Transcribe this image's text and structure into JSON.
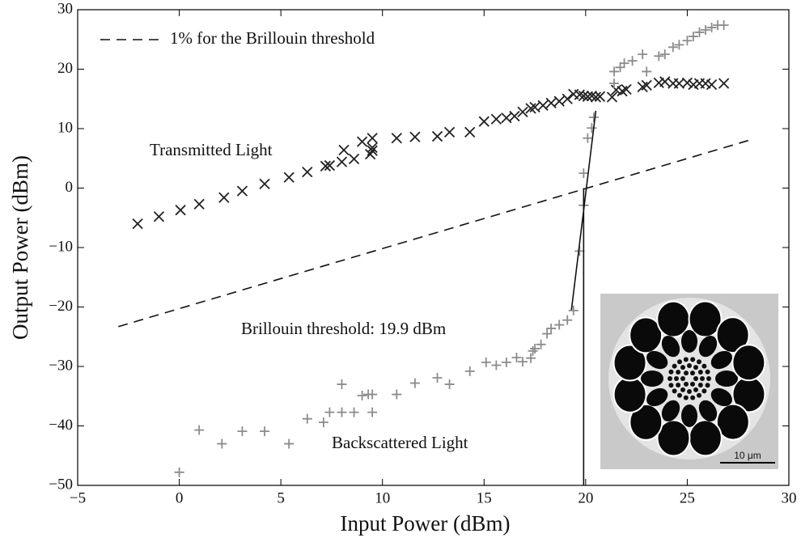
{
  "chart_data": {
    "type": "scatter",
    "xlabel": "Input Power (dBm)",
    "ylabel": "Output Power (dBm)",
    "xlim": [
      -5,
      30
    ],
    "ylim": [
      -50,
      30
    ],
    "xticks": [
      {
        "value": -5,
        "label": "−5"
      },
      0,
      5,
      10,
      15,
      20,
      25,
      30
    ],
    "yticks": [
      {
        "value": -50,
        "label": "−50"
      },
      {
        "value": -40,
        "label": "−40"
      },
      {
        "value": -30,
        "label": "−30"
      },
      {
        "value": -20,
        "label": "−20"
      },
      {
        "value": -10,
        "label": "−10"
      },
      0,
      10,
      20,
      30
    ],
    "legend": "upper left",
    "annotations": [
      "Transmitted Light",
      "Brillouin threshold: 19.9 dBm",
      "Backscattered Light"
    ],
    "inset": {
      "scale_label": "10 μm"
    },
    "series": [
      {
        "marker": "x",
        "color": "#222222",
        "x": [
          -2.05,
          -1,
          0.06,
          0.98,
          2.2,
          3.1,
          4.2,
          5.4,
          6.3,
          7.2,
          7.4,
          8,
          8.1,
          8.6,
          9,
          9.4,
          9.5,
          9.5,
          9.5,
          10.7,
          11.6,
          12.7,
          13.3,
          14.3,
          15,
          15.6,
          16.1,
          16.5,
          16.9,
          17.3,
          17.5,
          17.9,
          18.3,
          18.7,
          19.1,
          19.4,
          19.7,
          19.9,
          20.1,
          20.3,
          20.5,
          20.7,
          21.3,
          21.5,
          21.8,
          22,
          22.8,
          23,
          23.6,
          23.9,
          24.3,
          24.6,
          25,
          25.3,
          25.6,
          25.9,
          26.2,
          26.8
        ],
        "values": [
          -6,
          -4.8,
          -3.7,
          -2.7,
          -1.6,
          -0.5,
          0.7,
          1.8,
          2.7,
          3.7,
          3.8,
          4.4,
          6.4,
          4.9,
          7.8,
          5.7,
          8.4,
          6.8,
          6.3,
          8.4,
          8.6,
          8.7,
          9.4,
          9.4,
          11.2,
          11.6,
          11.8,
          12.1,
          12.8,
          13.4,
          13.6,
          13.9,
          14.3,
          14.6,
          15,
          15.8,
          15.7,
          15.5,
          15.4,
          15.5,
          15.3,
          15.4,
          15.3,
          16.5,
          16.3,
          16.6,
          17,
          17.3,
          17.7,
          17.9,
          17.6,
          17.6,
          17.7,
          17.4,
          17.6,
          17.6,
          17.4,
          17.6
        ]
      },
      {
        "marker": "+",
        "color": "#8c8c8c",
        "x": [
          0,
          0.98,
          2.1,
          3.1,
          4.2,
          5.4,
          6.3,
          7.1,
          7.4,
          8,
          8.6,
          8,
          9,
          9.3,
          9.5,
          9.5,
          10.7,
          11.6,
          12.7,
          13.3,
          14.3,
          15.1,
          15.6,
          16.1,
          16.6,
          16.9,
          17.3,
          17.4,
          17.5,
          17.8,
          18.1,
          18.3,
          18.7,
          19.1,
          19.4,
          19.7,
          19.9,
          19.9,
          20.1,
          20.3,
          20.4,
          21.4,
          21.4,
          21.7,
          21.9,
          22.3,
          22.8,
          23,
          23.6,
          23.9,
          24.3,
          24.6,
          25,
          25.3,
          25.6,
          25.9,
          26.2,
          26.5,
          26.8
        ],
        "values": [
          -47.8,
          -40.7,
          -43,
          -40.9,
          -40.9,
          -43,
          -38.8,
          -39.4,
          -37.7,
          -37.7,
          -37.7,
          -33,
          -34.9,
          -34.7,
          -37.7,
          -34.7,
          -34.7,
          -32.8,
          -31.9,
          -33,
          -30.8,
          -29.3,
          -29.8,
          -29.3,
          -28.5,
          -29.2,
          -28.6,
          -27.4,
          -27,
          -26.3,
          -24.5,
          -23.6,
          -23,
          -22.2,
          -20.6,
          -10.6,
          -2.9,
          2.5,
          8.4,
          10.1,
          11.9,
          17.6,
          19.6,
          20.3,
          21,
          21.4,
          22.5,
          19.6,
          22.2,
          22.5,
          23.7,
          24.1,
          24.8,
          25.5,
          26.2,
          26.6,
          27,
          27.4,
          27.4
        ]
      },
      {
        "name": "1% for the Brillouin threshold",
        "line": "dashed",
        "color": "#111111",
        "x": [
          -3,
          28
        ],
        "values": [
          -23.3,
          8
        ]
      },
      {
        "line": "solid",
        "color": "#111111",
        "x": [
          19.3,
          20.5
        ],
        "values": [
          -20.5,
          13
        ]
      },
      {
        "line": "solid",
        "color": "#111111",
        "x": [
          19.9,
          19.9
        ],
        "values": [
          -50,
          0
        ]
      }
    ]
  }
}
